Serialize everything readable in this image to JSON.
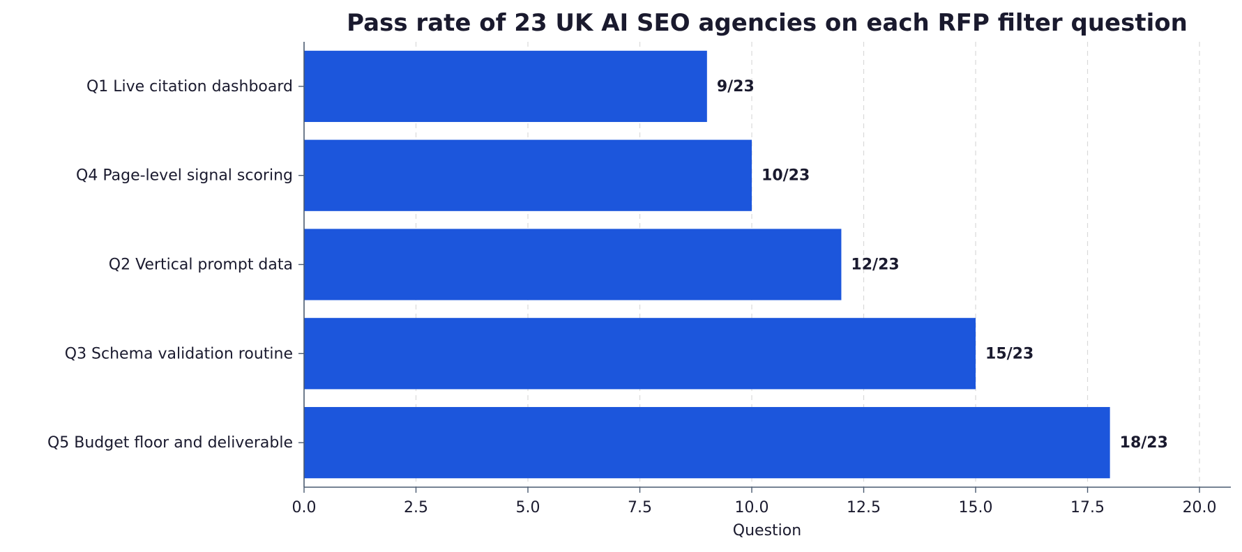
{
  "chart_data": {
    "type": "bar",
    "orientation": "horizontal",
    "title": "Pass rate of 23 UK AI SEO agencies on each RFP filter question",
    "xlabel": "Question",
    "ylabel": "",
    "categories": [
      "Q1 Live citation dashboard",
      "Q4 Page-level signal scoring",
      "Q2 Vertical prompt data",
      "Q3 Schema validation routine",
      "Q5 Budget floor and deliverable"
    ],
    "values": [
      9,
      10,
      12,
      15,
      18
    ],
    "data_labels": [
      "9/23",
      "10/23",
      "12/23",
      "15/23",
      "18/23"
    ],
    "xlim": [
      0,
      20.7
    ],
    "x_ticks": [
      0,
      2.5,
      5,
      7.5,
      10,
      12.5,
      15,
      17.5,
      20
    ],
    "x_tick_labels": [
      "0.0",
      "2.5",
      "5.0",
      "7.5",
      "10.0",
      "12.5",
      "15.0",
      "17.5",
      "20.0"
    ],
    "grid": "x, dashed",
    "legend": "none",
    "bar_color": "#1c56dc"
  }
}
